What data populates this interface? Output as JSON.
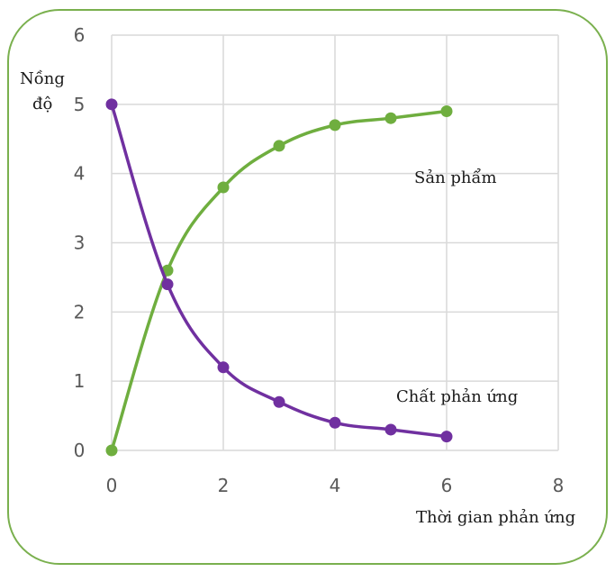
{
  "chart_data": {
    "type": "line",
    "xlabel": "Thời gian phản ứng",
    "ylabel_line1": "Nồng",
    "ylabel_line2": "độ",
    "xlim": [
      0,
      8
    ],
    "ylim": [
      0,
      6
    ],
    "xticks": [
      0,
      2,
      4,
      6,
      8
    ],
    "yticks": [
      0,
      1,
      2,
      3,
      4,
      5,
      6
    ],
    "grid": true,
    "x": [
      0,
      1,
      2,
      3,
      4,
      5,
      6
    ],
    "series": [
      {
        "name": "Sản phẩm",
        "color": "#6fae3f",
        "values": [
          0,
          2.6,
          3.8,
          4.4,
          4.7,
          4.8,
          4.9
        ]
      },
      {
        "name": "Chất phản ứng",
        "color": "#7030a0",
        "values": [
          5,
          2.4,
          1.2,
          0.7,
          0.4,
          0.3,
          0.2
        ]
      }
    ]
  }
}
